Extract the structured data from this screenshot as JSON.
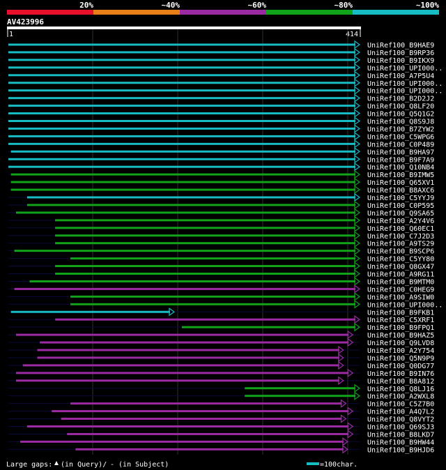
{
  "legend": {
    "labels": [
      "20%",
      "~40%",
      "~60%",
      "~80%",
      "~100%"
    ],
    "colors": [
      "#e8102a",
      "#e87f18",
      "#9c2aa3",
      "#11a31a",
      "#18bcc4"
    ]
  },
  "query": {
    "name": "AV423996",
    "start": "1",
    "end": "414",
    "length": 414
  },
  "hits": [
    {
      "name": "UniRef100_B9HAE9",
      "color": "#18bcc4",
      "segs": [
        [
          1,
          414
        ]
      ]
    },
    {
      "name": "UniRef100_B9RP36",
      "color": "#18bcc4",
      "segs": [
        [
          1,
          414
        ]
      ]
    },
    {
      "name": "UniRef100_B9IKX9",
      "color": "#18bcc4",
      "segs": [
        [
          1,
          414
        ]
      ]
    },
    {
      "name": "UniRef100_UPI000..",
      "color": "#18bcc4",
      "segs": [
        [
          1,
          414
        ]
      ]
    },
    {
      "name": "UniRef100_A7P5U4",
      "color": "#18bcc4",
      "segs": [
        [
          1,
          414
        ]
      ]
    },
    {
      "name": "UniRef100_UPI000..",
      "color": "#18bcc4",
      "segs": [
        [
          1,
          414
        ]
      ]
    },
    {
      "name": "UniRef100_UPI000..",
      "color": "#18bcc4",
      "segs": [
        [
          1,
          414
        ]
      ]
    },
    {
      "name": "UniRef100_B2D2J2",
      "color": "#18bcc4",
      "segs": [
        [
          1,
          414
        ]
      ]
    },
    {
      "name": "UniRef100_Q8LF20",
      "color": "#18bcc4",
      "segs": [
        [
          1,
          414
        ]
      ]
    },
    {
      "name": "UniRef100_Q5Q1G2",
      "color": "#18bcc4",
      "segs": [
        [
          1,
          414
        ]
      ]
    },
    {
      "name": "UniRef100_Q8S9J8",
      "color": "#18bcc4",
      "segs": [
        [
          1,
          414
        ]
      ]
    },
    {
      "name": "UniRef100_B7ZYW2",
      "color": "#18bcc4",
      "segs": [
        [
          1,
          414
        ]
      ]
    },
    {
      "name": "UniRef100_C5WPG6",
      "color": "#18bcc4",
      "segs": [
        [
          1,
          414
        ]
      ]
    },
    {
      "name": "UniRef100_C0P489",
      "color": "#18bcc4",
      "segs": [
        [
          1,
          414
        ]
      ]
    },
    {
      "name": "UniRef100_B9HA97",
      "color": "#18bcc4",
      "segs": [
        [
          4,
          414
        ]
      ]
    },
    {
      "name": "UniRef100_B9F7A9",
      "color": "#18bcc4",
      "segs": [
        [
          1,
          414
        ]
      ]
    },
    {
      "name": "UniRef100_Q10NB4",
      "color": "#18bcc4",
      "segs": [
        [
          1,
          414
        ]
      ]
    },
    {
      "name": "UniRef100_B9IMW5",
      "color": "#11a31a",
      "segs": [
        [
          4,
          414
        ]
      ]
    },
    {
      "name": "UniRef100_Q65XV1",
      "color": "#11a31a",
      "segs": [
        [
          4,
          414
        ]
      ]
    },
    {
      "name": "UniRef100_B8AXC6",
      "color": "#11a31a",
      "segs": [
        [
          4,
          414
        ]
      ]
    },
    {
      "name": "UniRef100_C5YYJ9",
      "color": "#18bcc4",
      "segs": [
        [
          23,
          414
        ]
      ]
    },
    {
      "name": "UniRef100_C0P595",
      "color": "#11a31a",
      "segs": [
        [
          23,
          414
        ]
      ]
    },
    {
      "name": "UniRef100_Q9SA65",
      "color": "#11a31a",
      "segs": [
        [
          10,
          414
        ]
      ]
    },
    {
      "name": "UniRef100_A2Y4V6",
      "color": "#11a31a",
      "segs": [
        [
          56,
          414
        ]
      ]
    },
    {
      "name": "UniRef100_Q60EC1",
      "color": "#11a31a",
      "segs": [
        [
          56,
          414
        ]
      ]
    },
    {
      "name": "UniRef100_C7J2D3",
      "color": "#11a31a",
      "segs": [
        [
          56,
          414
        ]
      ]
    },
    {
      "name": "UniRef100_A9TS29",
      "color": "#11a31a",
      "segs": [
        [
          56,
          414
        ]
      ]
    },
    {
      "name": "UniRef100_B9SCP6",
      "color": "#11a31a",
      "segs": [
        [
          8,
          414
        ]
      ]
    },
    {
      "name": "UniRef100_C5YY80",
      "color": "#11a31a",
      "segs": [
        [
          74,
          414
        ]
      ]
    },
    {
      "name": "UniRef100_Q8GX47",
      "color": "#11a31a",
      "segs": [
        [
          56,
          414
        ]
      ]
    },
    {
      "name": "UniRef100_A9RG11",
      "color": "#11a31a",
      "segs": [
        [
          56,
          414
        ]
      ]
    },
    {
      "name": "UniRef100_B9MTM0",
      "color": "#11a31a",
      "segs": [
        [
          26,
          414
        ]
      ]
    },
    {
      "name": "UniRef100_C0HEG9",
      "color": "#9c2aa3",
      "segs": [
        [
          8,
          414
        ]
      ]
    },
    {
      "name": "UniRef100_A9SIW0",
      "color": "#11a31a",
      "segs": [
        [
          74,
          414
        ]
      ]
    },
    {
      "name": "UniRef100_UPI000..",
      "color": "#11a31a",
      "segs": [
        [
          74,
          414
        ]
      ]
    },
    {
      "name": "UniRef100_B9FKB1",
      "color": "#18bcc4",
      "segs": [
        [
          4,
          196
        ]
      ]
    },
    {
      "name": "UniRef100_C5XRF1",
      "color": "#9c2aa3",
      "segs": [
        [
          56,
          414
        ]
      ]
    },
    {
      "name": "UniRef100_B9FPQ1",
      "color": "#11a31a",
      "segs": [
        [
          205,
          414
        ]
      ]
    },
    {
      "name": "UniRef100_B9HAZ5",
      "color": "#9c2aa3",
      "segs": [
        [
          10,
          406
        ]
      ]
    },
    {
      "name": "UniRef100_Q9LVD8",
      "color": "#9c2aa3",
      "segs": [
        [
          38,
          406
        ]
      ]
    },
    {
      "name": "UniRef100_A2Y754",
      "color": "#9c2aa3",
      "segs": [
        [
          35,
          395
        ]
      ]
    },
    {
      "name": "UniRef100_Q5N9P9",
      "color": "#9c2aa3",
      "segs": [
        [
          35,
          395
        ]
      ]
    },
    {
      "name": "UniRef100_Q0DG77",
      "color": "#9c2aa3",
      "segs": [
        [
          18,
          395
        ]
      ]
    },
    {
      "name": "UniRef100_B9IN76",
      "color": "#9c2aa3",
      "segs": [
        [
          10,
          406
        ]
      ]
    },
    {
      "name": "UniRef100_B8A812",
      "color": "#9c2aa3",
      "segs": [
        [
          10,
          395
        ]
      ]
    },
    {
      "name": "UniRef100_Q8LJ16",
      "color": "#11a31a",
      "segs": [
        [
          279,
          414
        ]
      ]
    },
    {
      "name": "UniRef100_A2WXL8",
      "color": "#11a31a",
      "segs": [
        [
          279,
          414
        ]
      ]
    },
    {
      "name": "UniRef100_C5Z7B0",
      "color": "#9c2aa3",
      "segs": [
        [
          74,
          398
        ]
      ]
    },
    {
      "name": "UniRef100_A4Q7L2",
      "color": "#9c2aa3",
      "segs": [
        [
          52,
          406
        ]
      ]
    },
    {
      "name": "UniRef100_Q8VYT2",
      "color": "#9c2aa3",
      "segs": [
        [
          63,
          398
        ]
      ]
    },
    {
      "name": "UniRef100_Q69SJ3",
      "color": "#9c2aa3",
      "segs": [
        [
          23,
          406
        ]
      ]
    },
    {
      "name": "UniRef100_B8LKD7",
      "color": "#9c2aa3",
      "segs": [
        [
          70,
          406
        ]
      ]
    },
    {
      "name": "UniRef100_B9HW44",
      "color": "#9c2aa3",
      "segs": [
        [
          15,
          400
        ]
      ]
    },
    {
      "name": "UniRef100_B9HJD6",
      "color": "#9c2aa3",
      "segs": [
        [
          80,
          400
        ]
      ]
    }
  ],
  "footer": {
    "gaps_label": "Large gaps:",
    "query_gap_text": "(in Query)/",
    "subject_gap_text": "- (in Subject)",
    "scale_text": "=100char."
  }
}
